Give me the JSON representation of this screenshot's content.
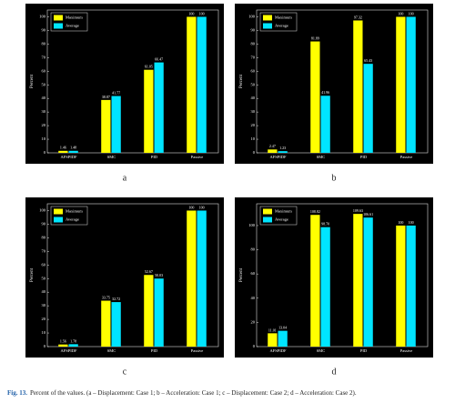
{
  "chart_data": [
    {
      "type": "bar",
      "panel_label": "a",
      "ylabel": "Percent",
      "legend": "upper left",
      "categories": [
        "AFSPIDF",
        "SMC",
        "PID",
        "Passive"
      ],
      "series": [
        {
          "name": "Maximum",
          "color": "#ffff00",
          "values": [
            1.46,
            38.87,
            61.05,
            100
          ]
        },
        {
          "name": "Average",
          "color": "#00e5ff",
          "values": [
            1.48,
            41.77,
            66.47,
            100
          ]
        }
      ],
      "ylim": [
        0,
        105
      ],
      "yticks": [
        0,
        10,
        20,
        30,
        40,
        50,
        60,
        70,
        80,
        90,
        100
      ]
    },
    {
      "type": "bar",
      "panel_label": "b",
      "ylabel": "Percent",
      "legend": "upper left",
      "categories": [
        "AFSPIDF",
        "SMC",
        "PID",
        "Passive"
      ],
      "series": [
        {
          "name": "Maximum",
          "color": "#ffff00",
          "values": [
            2.47,
            81.89,
            97.32,
            100
          ]
        },
        {
          "name": "Average",
          "color": "#00e5ff",
          "values": [
            1.23,
            41.96,
            65.43,
            100
          ]
        }
      ],
      "ylim": [
        0,
        105
      ],
      "yticks": [
        0,
        10,
        20,
        30,
        40,
        50,
        60,
        70,
        80,
        90,
        100
      ]
    },
    {
      "type": "bar",
      "panel_label": "c",
      "ylabel": "Percent",
      "legend": "upper left",
      "categories": [
        "AFSPIDF",
        "SMC",
        "PID",
        "Passive"
      ],
      "series": [
        {
          "name": "Maximum",
          "color": "#ffff00",
          "values": [
            1.56,
            33.75,
            52.67,
            100
          ]
        },
        {
          "name": "Average",
          "color": "#00e5ff",
          "values": [
            1.78,
            32.72,
            50.03,
            100
          ]
        }
      ],
      "ylim": [
        0,
        105
      ],
      "yticks": [
        0,
        10,
        20,
        30,
        40,
        50,
        60,
        70,
        80,
        90,
        100
      ]
    },
    {
      "type": "bar",
      "panel_label": "d",
      "ylabel": "Percent",
      "legend": "upper left",
      "categories": [
        "AFSPIDF",
        "SMC",
        "PID",
        "Passive"
      ],
      "series": [
        {
          "name": "Maximum",
          "color": "#ffff00",
          "values": [
            11.01,
            108.82,
            109.63,
            100
          ]
        },
        {
          "name": "Average",
          "color": "#00e5ff",
          "values": [
            13.04,
            98.7,
            106.61,
            100
          ],
          "value_labels": [
            "13.04",
            "98.70",
            "106.61",
            "100"
          ]
        }
      ],
      "ylim": [
        0,
        118
      ],
      "yticks": [
        0,
        20,
        40,
        60,
        80,
        100
      ]
    }
  ],
  "caption": {
    "label": "Fig. 13.",
    "text": "Percent of the values. (a – Displacement: Case 1; b – Acceleration: Case 1; c – Displacement: Case 2; d – Acceleration: Case 2)."
  }
}
